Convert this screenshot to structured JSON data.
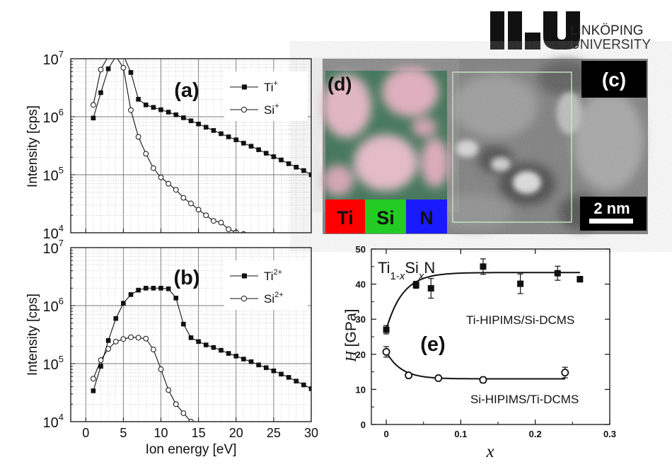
{
  "logo": {
    "mark": "li.u",
    "line1": "LINKÖPING",
    "line2": "UNIVERSITY"
  },
  "micrograph": {
    "panel_c_label": "(c)",
    "panel_d_label": "(d)",
    "scale_bar": "2 nm",
    "element_labels": [
      {
        "text": "Ti",
        "color": "#ff0000"
      },
      {
        "text": "Si",
        "color": "#22cc22"
      },
      {
        "text": "N",
        "color": "#1a1aff"
      }
    ]
  },
  "chart_data": [
    {
      "id": "a",
      "type": "line",
      "panel_label": "(a)",
      "ylabel": "Intensity [cps]",
      "yscale": "log",
      "ylim": [
        10000,
        10000000
      ],
      "xlim": [
        -2,
        30
      ],
      "y_tick_labels": [
        "10^4",
        "10^5",
        "10^6",
        "10^7"
      ],
      "legend": "top-right",
      "series": [
        {
          "name": "Ti+",
          "marker": "filled-square",
          "x": [
            1,
            2,
            3,
            4,
            5,
            6,
            7,
            8,
            9,
            10,
            11,
            12,
            13,
            14,
            15,
            16,
            17,
            18,
            19,
            20,
            21,
            22,
            23,
            24,
            25,
            26,
            27,
            28,
            29,
            30
          ],
          "y": [
            950000,
            2600000,
            6700000,
            11000000,
            11500000,
            5800000,
            2000000,
            1600000,
            1450000,
            1320000,
            1200000,
            1080000,
            960000,
            850000,
            750000,
            660000,
            580000,
            510000,
            450000,
            400000,
            350000,
            310000,
            270000,
            235000,
            205000,
            180000,
            155000,
            135000,
            118000,
            100000
          ]
        },
        {
          "name": "Si+",
          "marker": "open-circle",
          "x": [
            1,
            2,
            3,
            4,
            5,
            6,
            7,
            8,
            9,
            10,
            11,
            12,
            13,
            14,
            15,
            16,
            17,
            18,
            19,
            20,
            21
          ],
          "y": [
            1600000,
            6500000,
            11000000,
            11000000,
            7000000,
            1300000,
            450000,
            230000,
            130000,
            90000,
            70000,
            55000,
            40000,
            32000,
            25000,
            20000,
            16000,
            15000,
            11500,
            10200,
            9500
          ]
        }
      ]
    },
    {
      "id": "b",
      "type": "line",
      "panel_label": "(b)",
      "ylabel": "Intensity [cps]",
      "xlabel": "Ion energy [eV]",
      "yscale": "log",
      "ylim": [
        10000,
        10000000
      ],
      "xlim": [
        -2,
        30
      ],
      "x_tick_labels": [
        "0",
        "5",
        "10",
        "15",
        "20",
        "25",
        "30"
      ],
      "y_tick_labels": [
        "10^4",
        "10^5",
        "10^6",
        "10^7"
      ],
      "legend": "top-right",
      "series": [
        {
          "name": "Ti2+",
          "marker": "filled-square",
          "x": [
            1,
            2,
            3,
            4,
            5,
            6,
            7,
            8,
            9,
            10,
            11,
            12,
            13,
            14,
            15,
            16,
            17,
            18,
            19,
            20,
            21,
            22,
            23,
            24,
            25,
            26,
            27,
            28,
            29,
            30
          ],
          "y": [
            34000,
            90000,
            250000,
            600000,
            1100000,
            1550000,
            1850000,
            2000000,
            2000000,
            2000000,
            1950000,
            1350000,
            480000,
            280000,
            240000,
            210000,
            190000,
            170000,
            150000,
            135000,
            120000,
            108000,
            95000,
            85000,
            75000,
            66000,
            58000,
            50000,
            43000,
            37000
          ]
        },
        {
          "name": "Si2+",
          "marker": "open-circle",
          "x": [
            1,
            2,
            3,
            4,
            5,
            6,
            7,
            8,
            9,
            10,
            11,
            12,
            13,
            14
          ],
          "y": [
            55000,
            115000,
            180000,
            240000,
            265000,
            285000,
            280000,
            270000,
            175000,
            80000,
            35000,
            20000,
            14000,
            10000
          ]
        }
      ]
    },
    {
      "id": "e",
      "type": "scatter",
      "panel_label": "(e)",
      "title": "Ti1-xSixN",
      "xlabel": "x",
      "ylabel": "H [GPa]",
      "xlim": [
        -0.02,
        0.3
      ],
      "ylim": [
        0,
        50
      ],
      "x_tick_labels": [
        "0",
        "0.1",
        "0.2",
        "0.3"
      ],
      "y_tick_labels": [
        "0",
        "10",
        "20",
        "30",
        "40",
        "50"
      ],
      "series": [
        {
          "name": "Ti-HIPIMS/Si-DCMS",
          "marker": "filled-square",
          "x": [
            0.0,
            0.04,
            0.06,
            0.13,
            0.18,
            0.23,
            0.26
          ],
          "y": [
            27,
            39.8,
            38.8,
            45,
            40.1,
            43.1,
            41.4
          ],
          "err": [
            1.2,
            1.0,
            2.8,
            2.2,
            2.8,
            2.0,
            0.8
          ]
        },
        {
          "name": "Si-HIPIMS/Ti-DCMS",
          "marker": "open-circle",
          "x": [
            0.0,
            0.03,
            0.07,
            0.13,
            0.24
          ],
          "y": [
            20.7,
            14.0,
            13.2,
            12.7,
            14.8
          ],
          "err": [
            1.5,
            0.5,
            0.6,
            0.8,
            1.5
          ]
        }
      ]
    }
  ]
}
